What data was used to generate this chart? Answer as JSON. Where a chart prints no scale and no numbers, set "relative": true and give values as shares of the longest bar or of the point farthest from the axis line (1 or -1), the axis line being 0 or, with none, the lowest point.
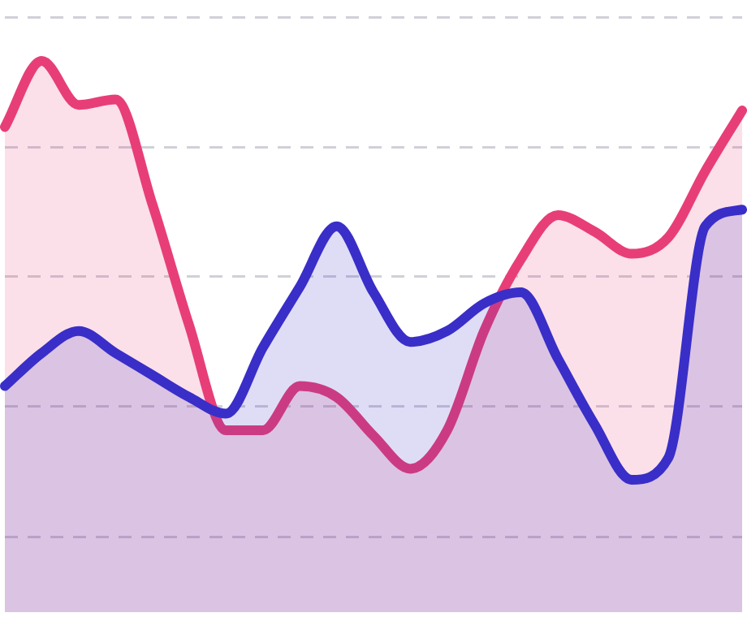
{
  "chart_data": {
    "type": "area",
    "relative": true,
    "grid": "y",
    "legend": false,
    "marker": "none",
    "line_style": "solid",
    "categories": [
      null,
      null,
      null,
      null,
      null,
      null,
      null,
      null,
      null,
      null,
      null,
      null,
      null,
      null,
      null,
      null,
      null,
      null,
      null,
      null,
      null
    ],
    "series": [
      {
        "color": "#e83e78",
        "values": [
          0.88,
          1,
          0.92,
          0.93,
          0.74,
          0.52,
          0.33,
          0.33,
          0.41,
          0.39,
          0.32,
          0.26,
          0.33,
          0.51,
          0.64,
          0.72,
          0.69,
          0.65,
          0.68,
          0.8,
          0.91
        ]
      },
      {
        "color": "#3a2ec8",
        "values": [
          0.41,
          0.47,
          0.51,
          0.47,
          0.43,
          0.39,
          0.36,
          0.48,
          0.59,
          0.7,
          0.58,
          0.49,
          0.51,
          0.56,
          0.58,
          0.46,
          0.34,
          0.24,
          0.28,
          0.7,
          0.73
        ]
      }
    ]
  }
}
